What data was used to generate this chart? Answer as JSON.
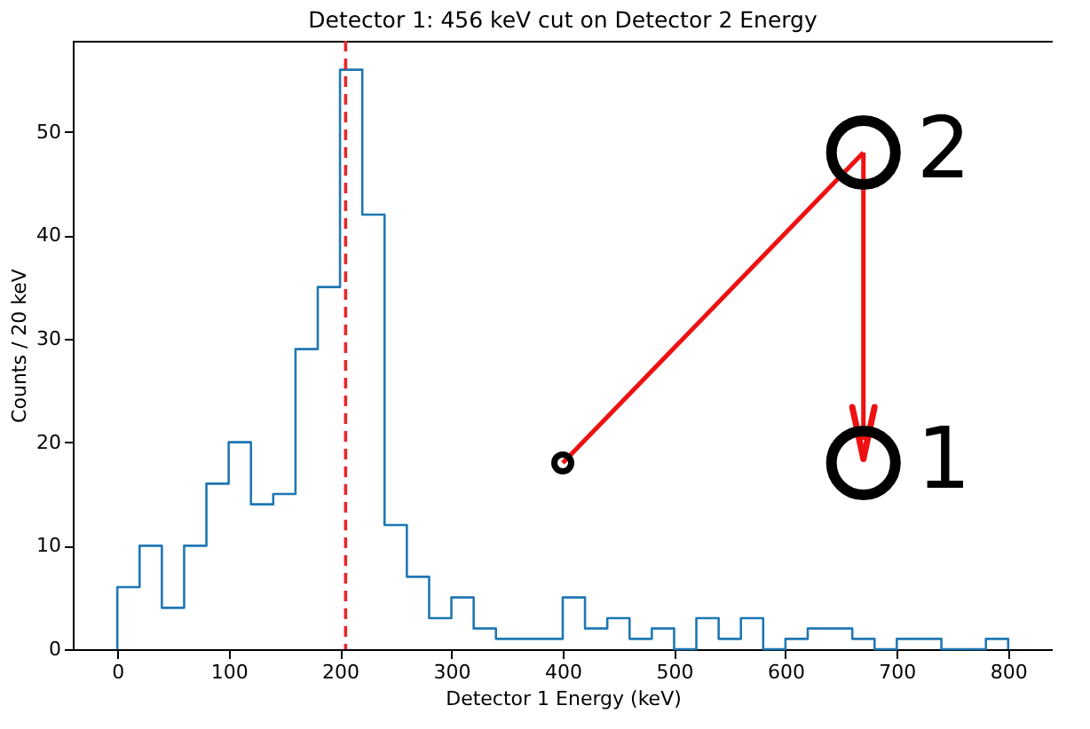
{
  "chart_data": {
    "type": "histogram",
    "title": "Detector 1: 456 keV cut on Detector 2 Energy",
    "xlabel": "Detector 1 Energy (keV)",
    "ylabel": "Counts / 20 keV",
    "bins": [
      0,
      20,
      40,
      60,
      80,
      100,
      120,
      140,
      160,
      180,
      200,
      220,
      240,
      260,
      280,
      300,
      320,
      340,
      360,
      380,
      400,
      420,
      440,
      460,
      480,
      500,
      520,
      540,
      560,
      580,
      600,
      620,
      640,
      660,
      680,
      700,
      720,
      740,
      760,
      780,
      800
    ],
    "values": [
      6,
      10,
      4,
      10,
      16,
      20,
      14,
      15,
      29,
      35,
      56,
      42,
      12,
      7,
      3,
      5,
      2,
      1,
      1,
      1,
      5,
      2,
      3,
      1,
      2,
      0,
      3,
      1,
      3,
      0,
      1,
      2,
      2,
      1,
      0,
      1,
      1,
      0,
      0,
      1
    ],
    "color": "#1f77b4",
    "xlim": [
      -40,
      840
    ],
    "ylim": [
      0,
      58.8
    ],
    "xticks": [
      0,
      100,
      200,
      300,
      400,
      500,
      600,
      700,
      800
    ],
    "yticks": [
      0,
      10,
      20,
      30,
      40,
      50
    ],
    "grid": false,
    "ref_lines": [
      {
        "axis": "x",
        "value": 205,
        "color": "#e8262a",
        "line_style": "dashed"
      }
    ],
    "annotations": [
      {
        "text": "2",
        "x": 670,
        "y": 48
      },
      {
        "text": "1",
        "x": 670,
        "y": 18
      }
    ]
  }
}
